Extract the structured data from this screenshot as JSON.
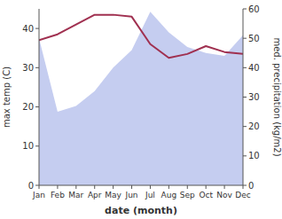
{
  "chart_data": {
    "type": "line",
    "xlabel": "date (month)",
    "ylabel": "max temp (C)",
    "y2label": "med. precipitation (kg/m2)",
    "categories": [
      "Jan",
      "Feb",
      "Mar",
      "Apr",
      "May",
      "Jun",
      "Jul",
      "Aug",
      "Sep",
      "Oct",
      "Nov",
      "Dec"
    ],
    "series": [
      {
        "type": "area",
        "axis": "y2",
        "color": "#c5cdf0",
        "values": [
          50,
          25,
          27,
          32,
          40,
          46,
          59,
          52,
          47,
          45,
          44,
          51
        ]
      },
      {
        "type": "line",
        "color": "#a03050",
        "values": [
          37.0,
          38.5,
          41.0,
          43.5,
          43.5,
          43.0,
          36.0,
          32.5,
          33.5,
          35.5,
          34.0,
          33.5
        ]
      }
    ],
    "ylim": [
      0,
      45
    ],
    "yticks": [
      0,
      10,
      20,
      30,
      40
    ],
    "y2lim": [
      0,
      60
    ],
    "y2ticks": [
      0,
      10,
      20,
      30,
      40,
      50,
      60
    ],
    "grid": false
  }
}
